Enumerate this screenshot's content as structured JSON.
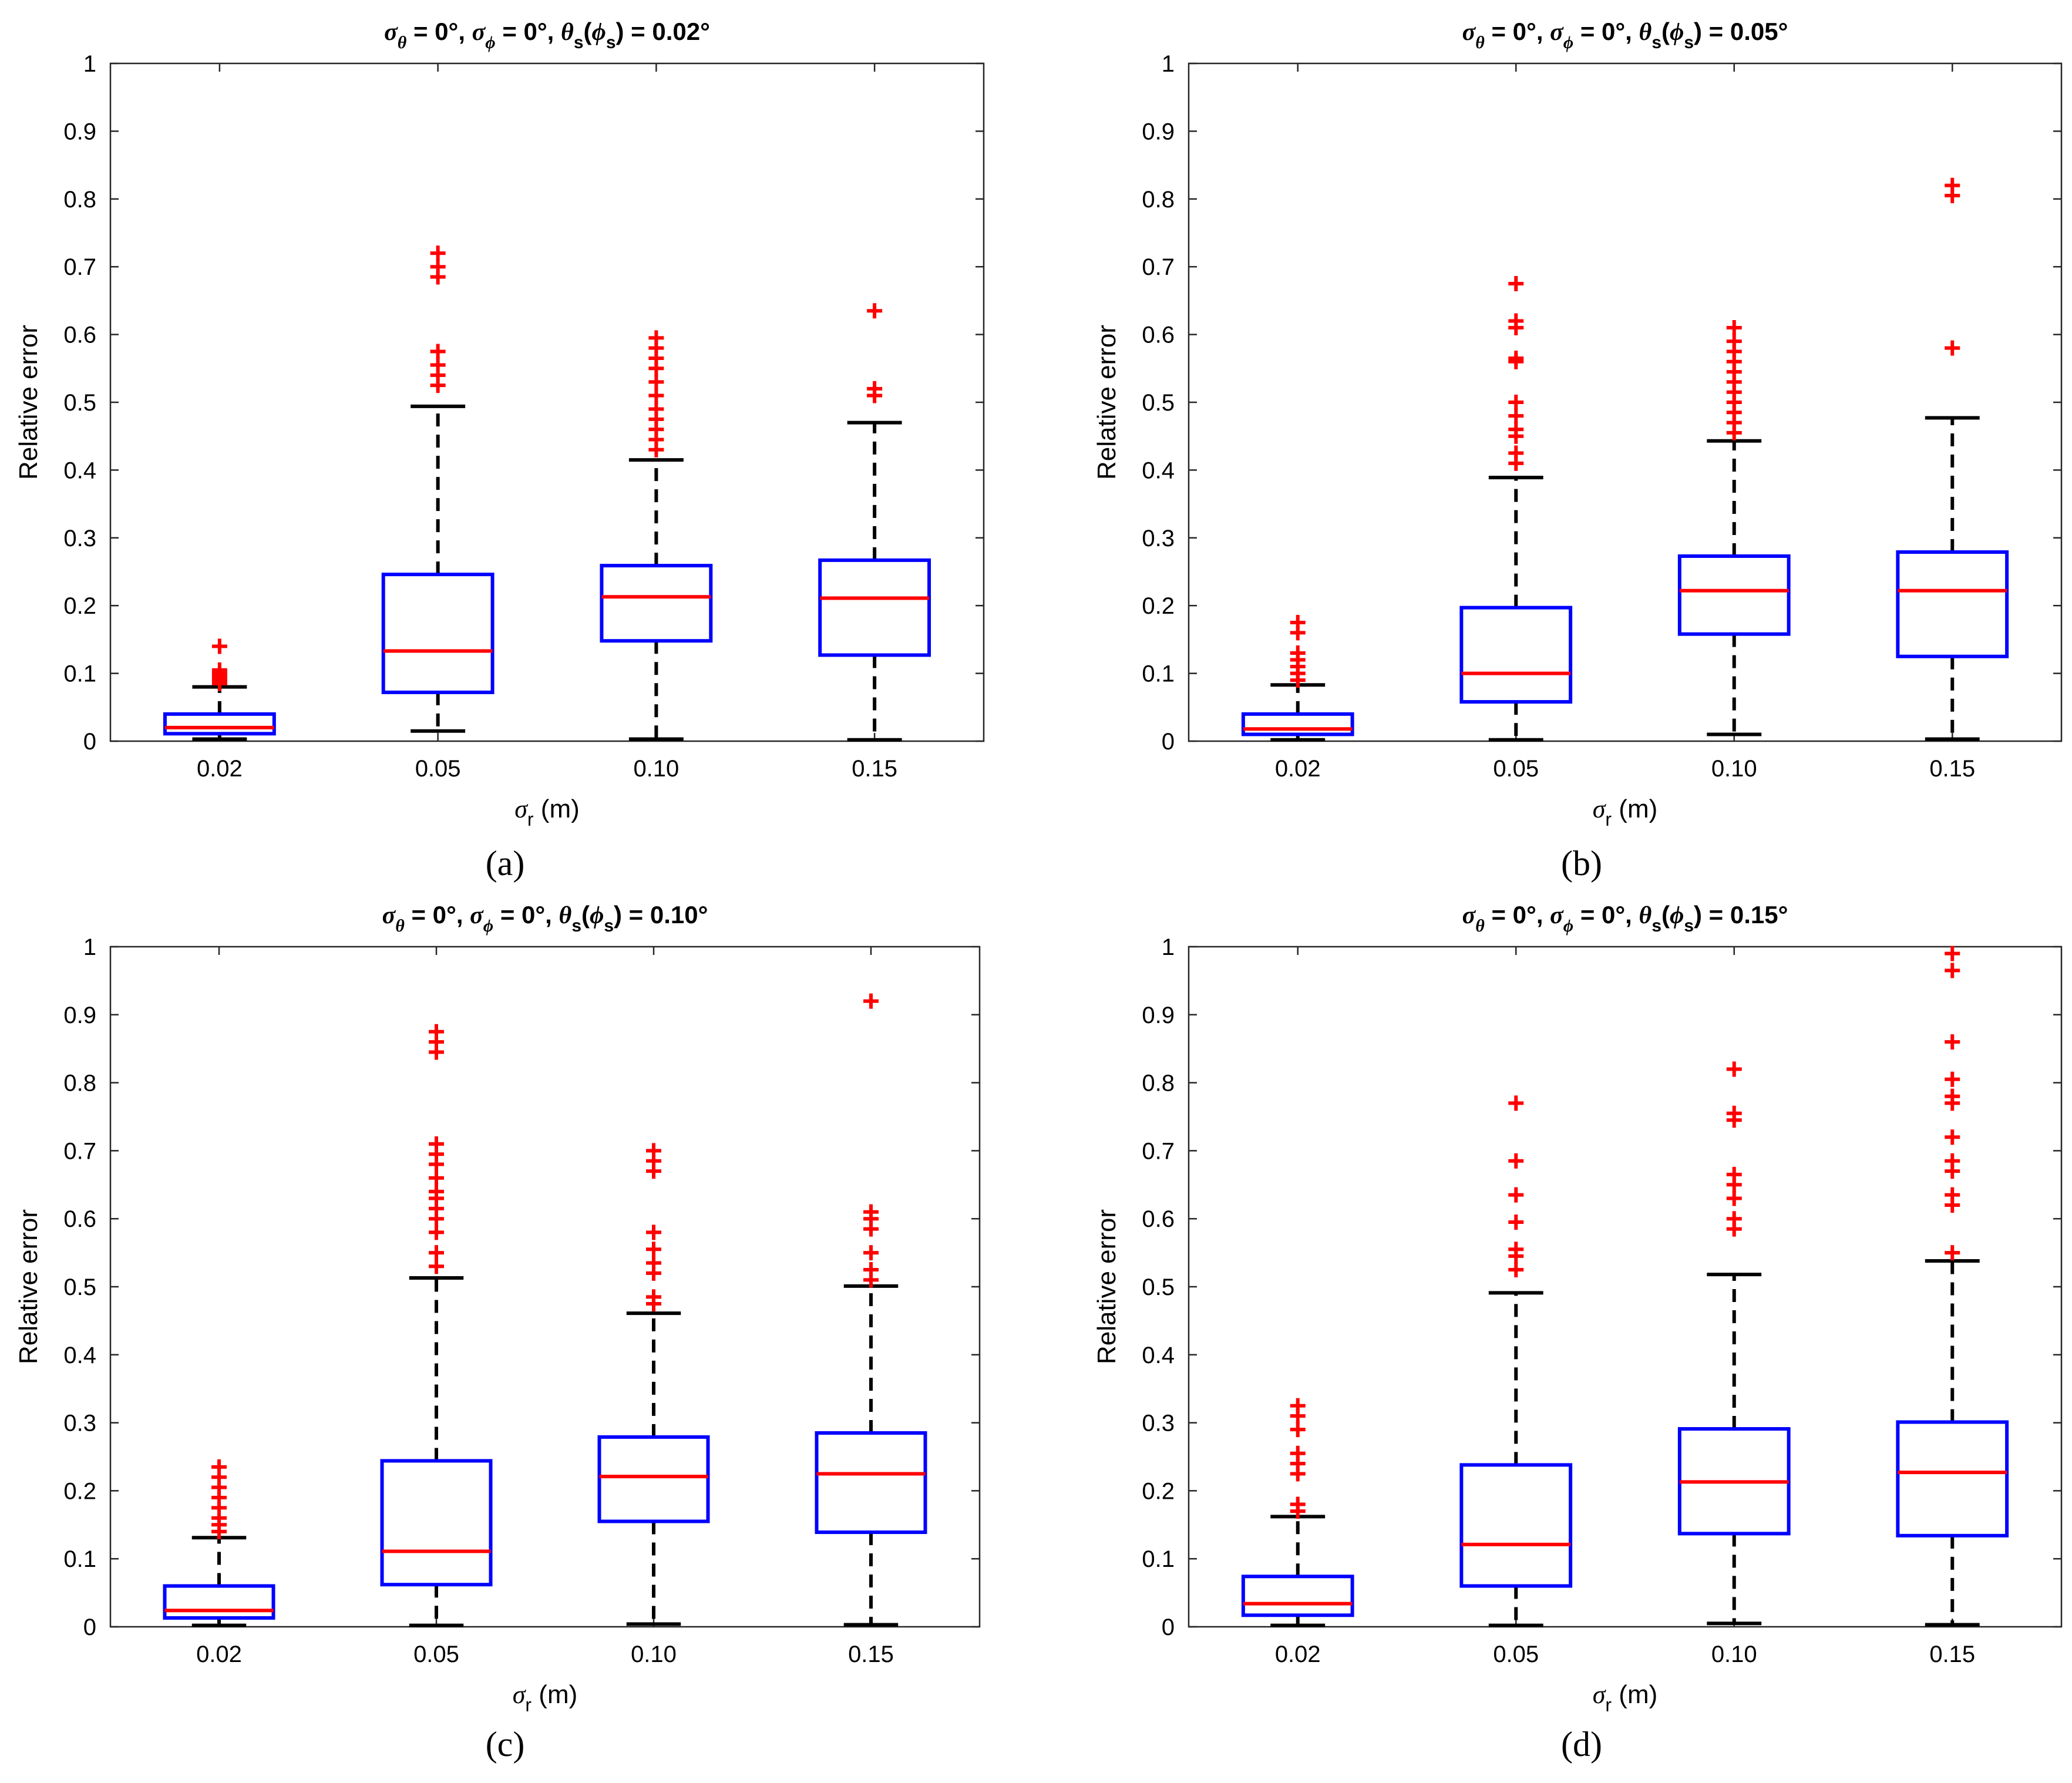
{
  "figure": {
    "panels": [
      {
        "caption": "(a)",
        "title_value": "0.02°"
      },
      {
        "caption": "(b)",
        "title_value": "0.05°"
      },
      {
        "caption": "(c)",
        "title_value": "0.10°"
      },
      {
        "caption": "(d)",
        "title_value": "0.15°"
      }
    ],
    "title_prefix": {
      "sigma_theta": "σ",
      "theta_sub": "θ",
      "eq0a": " = 0°, ",
      "sigma_phi": "σ",
      "phi_sub": "ϕ",
      "eq0b": " = 0°, ",
      "theta": "θ",
      "s_sub": "s",
      "paren_open": "(",
      "phi": "ϕ",
      "s_sub2": "s",
      "paren_close_eq": ") = "
    },
    "xlabel": {
      "sigma": "σ",
      "sub": "r",
      "unit": " (m)"
    },
    "ylabel": "Relative error",
    "colors": {
      "box": "#0000ff",
      "median": "#ff0000",
      "whisker": "#000000",
      "outlier": "#ff0000"
    }
  },
  "chart_data": [
    {
      "type": "box",
      "title": "σθ = 0°, σϕ = 0°, θs(ϕs) = 0.02°",
      "xlabel": "σr (m)",
      "ylabel": "Relative error",
      "categories": [
        "0.02",
        "0.05",
        "0.10",
        "0.15"
      ],
      "ylim": [
        0,
        1
      ],
      "yticks": [
        "0",
        "0.1",
        "0.2",
        "0.3",
        "0.4",
        "0.5",
        "0.6",
        "0.7",
        "0.8",
        "0.9",
        "1"
      ],
      "boxes": [
        {
          "whisker_low": 0.003,
          "q1": 0.011,
          "median": 0.02,
          "q3": 0.04,
          "whisker_high": 0.08,
          "outliers": [
            0.085,
            0.09,
            0.095,
            0.1,
            0.105,
            0.14
          ]
        },
        {
          "whisker_low": 0.015,
          "q1": 0.072,
          "median": 0.133,
          "q3": 0.246,
          "whisker_high": 0.494,
          "outliers": [
            0.525,
            0.54,
            0.555,
            0.575,
            0.685,
            0.7,
            0.72
          ]
        },
        {
          "whisker_low": 0.003,
          "q1": 0.148,
          "median": 0.213,
          "q3": 0.259,
          "whisker_high": 0.415,
          "outliers": [
            0.43,
            0.445,
            0.46,
            0.475,
            0.49,
            0.51,
            0.53,
            0.55,
            0.565,
            0.58,
            0.595
          ]
        },
        {
          "whisker_low": 0.002,
          "q1": 0.127,
          "median": 0.211,
          "q3": 0.267,
          "whisker_high": 0.47,
          "outliers": [
            0.51,
            0.52,
            0.635
          ]
        }
      ]
    },
    {
      "type": "box",
      "title": "σθ = 0°, σϕ = 0°, θs(ϕs) = 0.05°",
      "xlabel": "σr (m)",
      "ylabel": "Relative error",
      "categories": [
        "0.02",
        "0.05",
        "0.10",
        "0.15"
      ],
      "ylim": [
        0,
        1
      ],
      "yticks": [
        "0",
        "0.1",
        "0.2",
        "0.3",
        "0.4",
        "0.5",
        "0.6",
        "0.7",
        "0.8",
        "0.9",
        "1"
      ],
      "boxes": [
        {
          "whisker_low": 0.002,
          "q1": 0.01,
          "median": 0.018,
          "q3": 0.04,
          "whisker_high": 0.083,
          "outliers": [
            0.09,
            0.1,
            0.11,
            0.12,
            0.13,
            0.16,
            0.175
          ]
        },
        {
          "whisker_low": 0.002,
          "q1": 0.058,
          "median": 0.1,
          "q3": 0.197,
          "whisker_high": 0.389,
          "outliers": [
            0.41,
            0.425,
            0.45,
            0.46,
            0.48,
            0.5,
            0.56,
            0.565,
            0.61,
            0.62,
            0.675
          ]
        },
        {
          "whisker_low": 0.01,
          "q1": 0.158,
          "median": 0.222,
          "q3": 0.273,
          "whisker_high": 0.443,
          "outliers": [
            0.455,
            0.47,
            0.485,
            0.5,
            0.515,
            0.53,
            0.545,
            0.56,
            0.575,
            0.59,
            0.61
          ]
        },
        {
          "whisker_low": 0.003,
          "q1": 0.125,
          "median": 0.222,
          "q3": 0.279,
          "whisker_high": 0.477,
          "outliers": [
            0.58,
            0.805,
            0.82
          ]
        }
      ]
    },
    {
      "type": "box",
      "title": "σθ = 0°, σϕ = 0°, θs(ϕs) = 0.10°",
      "xlabel": "σr (m)",
      "ylabel": "Relative error",
      "categories": [
        "0.02",
        "0.05",
        "0.10",
        "0.15"
      ],
      "ylim": [
        0,
        1
      ],
      "yticks": [
        "0",
        "0.1",
        "0.2",
        "0.3",
        "0.4",
        "0.5",
        "0.6",
        "0.7",
        "0.8",
        "0.9",
        "1"
      ],
      "boxes": [
        {
          "whisker_low": 0.002,
          "q1": 0.013,
          "median": 0.024,
          "q3": 0.06,
          "whisker_high": 0.131,
          "outliers": [
            0.14,
            0.15,
            0.16,
            0.175,
            0.19,
            0.205,
            0.22,
            0.235
          ]
        },
        {
          "whisker_low": 0.002,
          "q1": 0.062,
          "median": 0.111,
          "q3": 0.244,
          "whisker_high": 0.513,
          "outliers": [
            0.53,
            0.55,
            0.58,
            0.6,
            0.615,
            0.63,
            0.64,
            0.66,
            0.68,
            0.695,
            0.71,
            0.845,
            0.86,
            0.875
          ]
        },
        {
          "whisker_low": 0.004,
          "q1": 0.155,
          "median": 0.221,
          "q3": 0.279,
          "whisker_high": 0.461,
          "outliers": [
            0.475,
            0.485,
            0.52,
            0.535,
            0.555,
            0.58,
            0.67,
            0.685,
            0.7
          ]
        },
        {
          "whisker_low": 0.003,
          "q1": 0.139,
          "median": 0.225,
          "q3": 0.285,
          "whisker_high": 0.501,
          "outliers": [
            0.51,
            0.525,
            0.55,
            0.585,
            0.6,
            0.61,
            0.92
          ]
        }
      ]
    },
    {
      "type": "box",
      "title": "σθ = 0°, σϕ = 0°, θs(ϕs) = 0.15°",
      "xlabel": "σr (m)",
      "ylabel": "Relative error",
      "categories": [
        "0.02",
        "0.05",
        "0.10",
        "0.15"
      ],
      "ylim": [
        0,
        1
      ],
      "yticks": [
        "0",
        "0.1",
        "0.2",
        "0.3",
        "0.4",
        "0.5",
        "0.6",
        "0.7",
        "0.8",
        "0.9",
        "1"
      ],
      "boxes": [
        {
          "whisker_low": 0.002,
          "q1": 0.017,
          "median": 0.034,
          "q3": 0.074,
          "whisker_high": 0.162,
          "outliers": [
            0.17,
            0.18,
            0.225,
            0.24,
            0.255,
            0.29,
            0.31,
            0.325
          ]
        },
        {
          "whisker_low": 0.002,
          "q1": 0.06,
          "median": 0.121,
          "q3": 0.238,
          "whisker_high": 0.491,
          "outliers": [
            0.525,
            0.545,
            0.555,
            0.595,
            0.635,
            0.685,
            0.77
          ]
        },
        {
          "whisker_low": 0.005,
          "q1": 0.137,
          "median": 0.213,
          "q3": 0.291,
          "whisker_high": 0.518,
          "outliers": [
            0.585,
            0.6,
            0.63,
            0.65,
            0.665,
            0.745,
            0.755,
            0.82
          ]
        },
        {
          "whisker_low": 0.003,
          "q1": 0.134,
          "median": 0.227,
          "q3": 0.301,
          "whisker_high": 0.538,
          "outliers": [
            0.55,
            0.62,
            0.635,
            0.67,
            0.685,
            0.72,
            0.77,
            0.78,
            0.805,
            0.86,
            0.965,
            0.99
          ]
        }
      ]
    }
  ]
}
